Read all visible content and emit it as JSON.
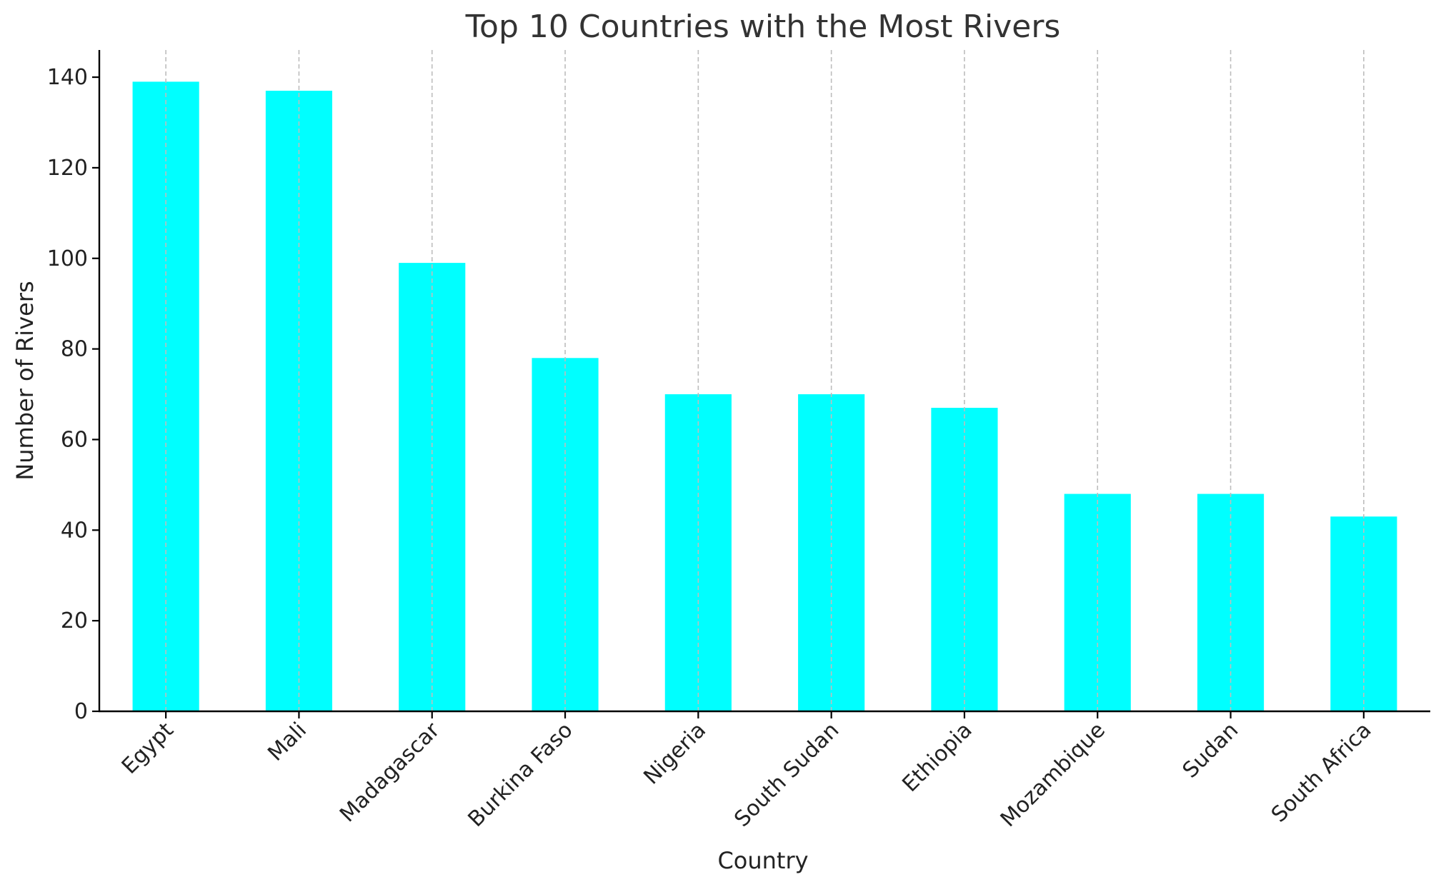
{
  "chart_data": {
    "type": "bar",
    "title": "Top 10 Countries with the Most Rivers",
    "xlabel": "Country",
    "ylabel": "Number of Rivers",
    "categories": [
      "Egypt",
      "Mali",
      "Madagascar",
      "Burkina Faso",
      "Nigeria",
      "South Sudan",
      "Ethiopia",
      "Mozambique",
      "Sudan",
      "South Africa"
    ],
    "values": [
      139,
      137,
      99,
      78,
      70,
      70,
      67,
      48,
      48,
      43
    ],
    "ylim": [
      0,
      146
    ],
    "yticks": [
      0,
      20,
      40,
      60,
      80,
      100,
      120,
      140
    ],
    "grid": "vertical dashed",
    "bar_color": "#00FFFF",
    "grid_color": "#BDBDBD"
  }
}
